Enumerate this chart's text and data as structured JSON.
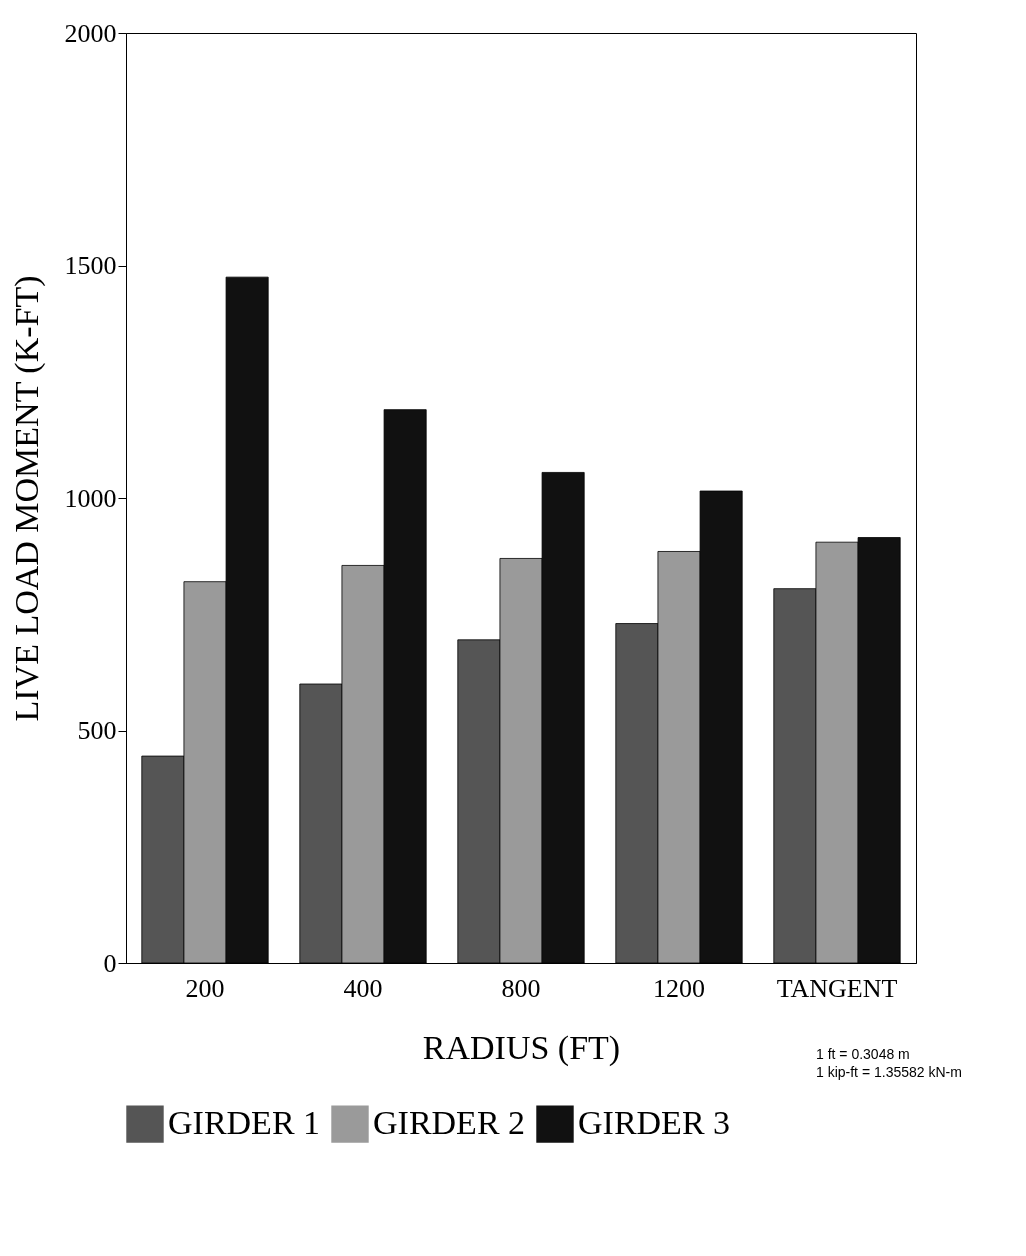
{
  "chart_data": {
    "type": "bar",
    "xlabel": "RADIUS (FT)",
    "ylabel": "LIVE LOAD MOMENT (K-FT)",
    "categories": [
      "200",
      "400",
      "800",
      "1200",
      "TANGENT"
    ],
    "series": [
      {
        "name": "GIRDER 1",
        "color": "#555555",
        "values": [
          445,
          600,
          695,
          730,
          805
        ]
      },
      {
        "name": "GIRDER 2",
        "color": "#9a9a9a",
        "values": [
          820,
          855,
          870,
          885,
          905
        ]
      },
      {
        "name": "GIRDER 3",
        "color": "#111111",
        "values": [
          1475,
          1190,
          1055,
          1015,
          915
        ]
      }
    ],
    "ylim": [
      0,
      2000
    ],
    "yticks": [
      0,
      500,
      1000,
      1500,
      2000
    ],
    "grid": false,
    "legend": "bottom",
    "annotations": [
      "1 ft = 0.3048 m",
      "1 kip-ft = 1.35582 kN-m"
    ]
  }
}
